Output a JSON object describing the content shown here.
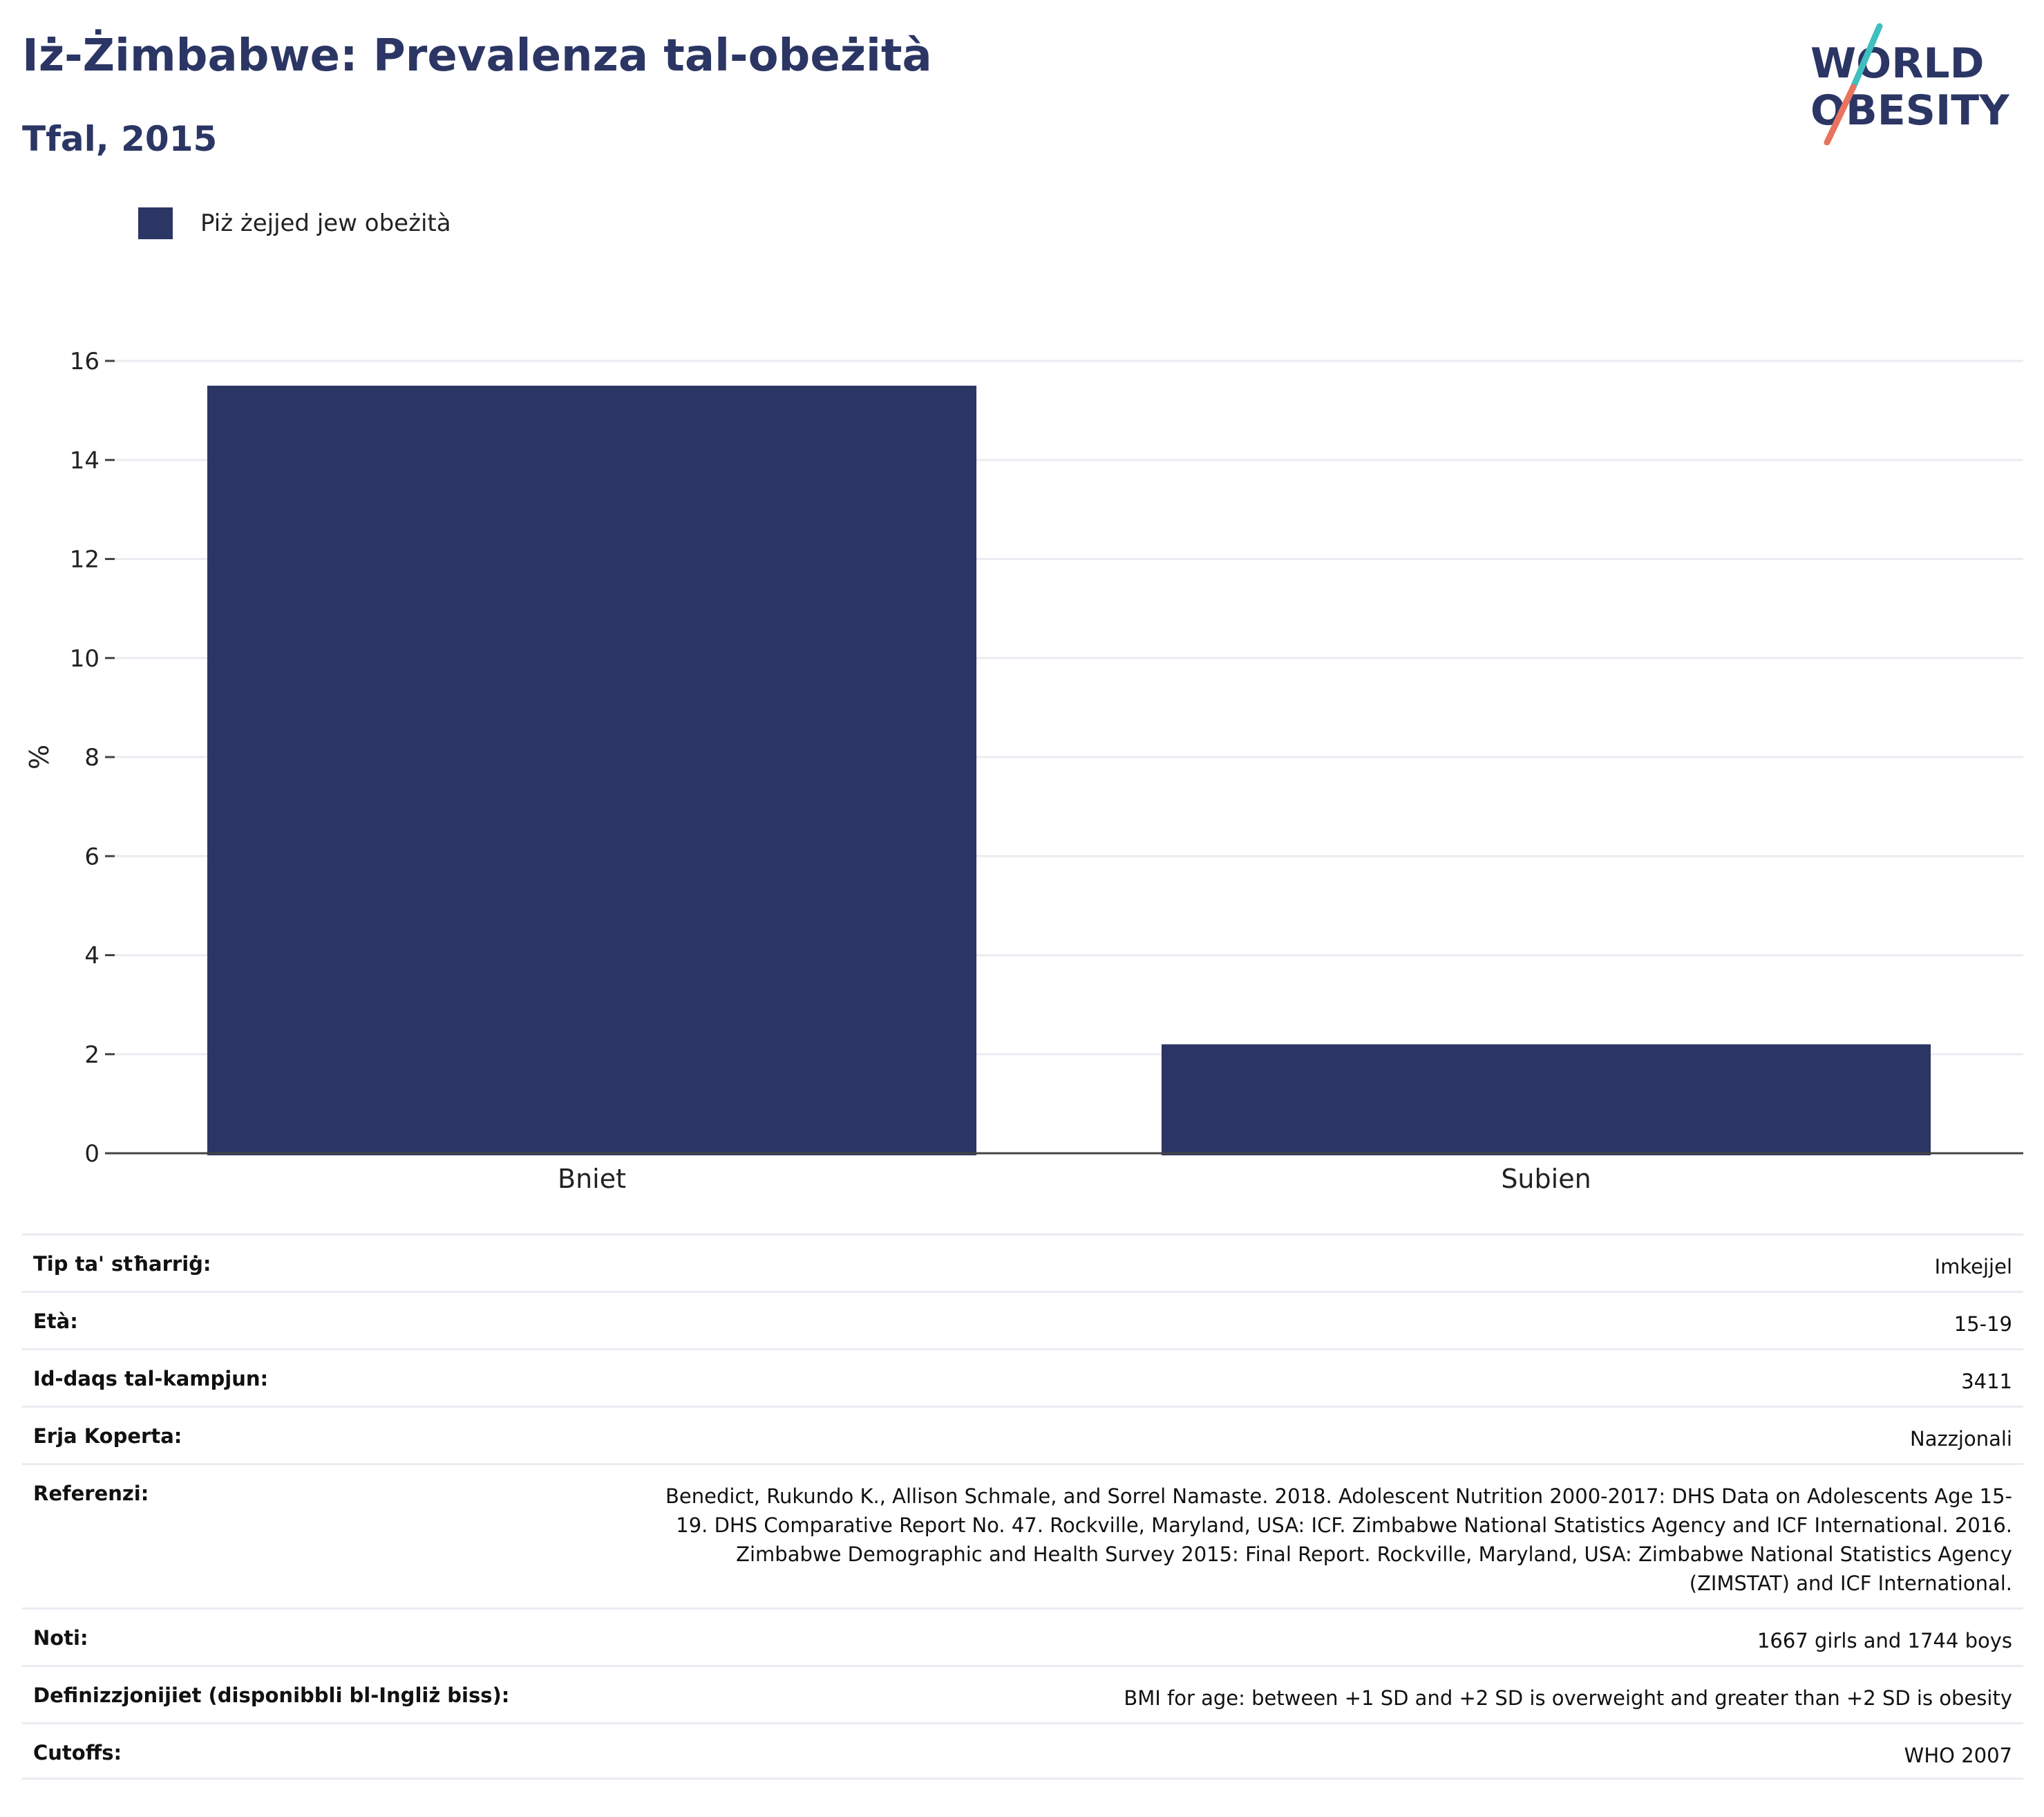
{
  "header": {
    "title": "Iż-Żimbabwe: Prevalenza tal-obeżità",
    "subtitle": "Tfal, 2015"
  },
  "logo": {
    "line1": "WORLD",
    "line2": "OBESITY",
    "colors": {
      "text": "#2b3664",
      "accent_teal": "#3fbfbf",
      "accent_coral": "#e8735f"
    }
  },
  "colors": {
    "bar": "#2b3664",
    "grid": "#ebebf2",
    "axis": "#444444",
    "text": "#222222"
  },
  "chart_data": {
    "type": "bar",
    "title": "Iż-Żimbabwe: Prevalenza tal-obeżità",
    "subtitle": "Tfal, 2015",
    "categories": [
      "Bniet",
      "Subien"
    ],
    "series": [
      {
        "name": "Piż żejjed jew obeżità",
        "values": [
          15.5,
          2.2
        ]
      }
    ],
    "xlabel": "",
    "ylabel": "%",
    "ylim": [
      0,
      16
    ],
    "yticks": [
      0,
      2,
      4,
      6,
      8,
      10,
      12,
      14,
      16
    ],
    "grid": true,
    "legend": "top-left"
  },
  "meta": [
    {
      "key": "Tip ta' stħarriġ:",
      "value": "Imkejjel"
    },
    {
      "key": "Età:",
      "value": "15-19"
    },
    {
      "key": "Id-daqs tal-kampjun:",
      "value": "3411"
    },
    {
      "key": "Erja Koperta:",
      "value": "Nazzjonali"
    },
    {
      "key": "Referenzi:",
      "value_lines": [
        "Benedict, Rukundo K., Allison Schmale, and Sorrel Namaste. 2018. Adolescent Nutrition 2000-2017: DHS Data on Adolescents Age 15-",
        "19. DHS Comparative Report No. 47. Rockville, Maryland, USA: ICF. Zimbabwe National Statistics Agency and ICF International. 2016.",
        "Zimbabwe Demographic and Health Survey 2015: Final Report. Rockville, Maryland, USA: Zimbabwe National Statistics Agency",
        "(ZIMSTAT) and ICF International."
      ]
    },
    {
      "key": "Noti:",
      "value": "1667 girls and 1744 boys"
    },
    {
      "key": "Definizzjonijiet (disponibbli bl-Ingliż biss):",
      "value": "BMI for age: between +1 SD and +2 SD is overweight and greater than +2 SD is obesity"
    },
    {
      "key": "Cutoffs:",
      "value": "WHO 2007"
    }
  ]
}
